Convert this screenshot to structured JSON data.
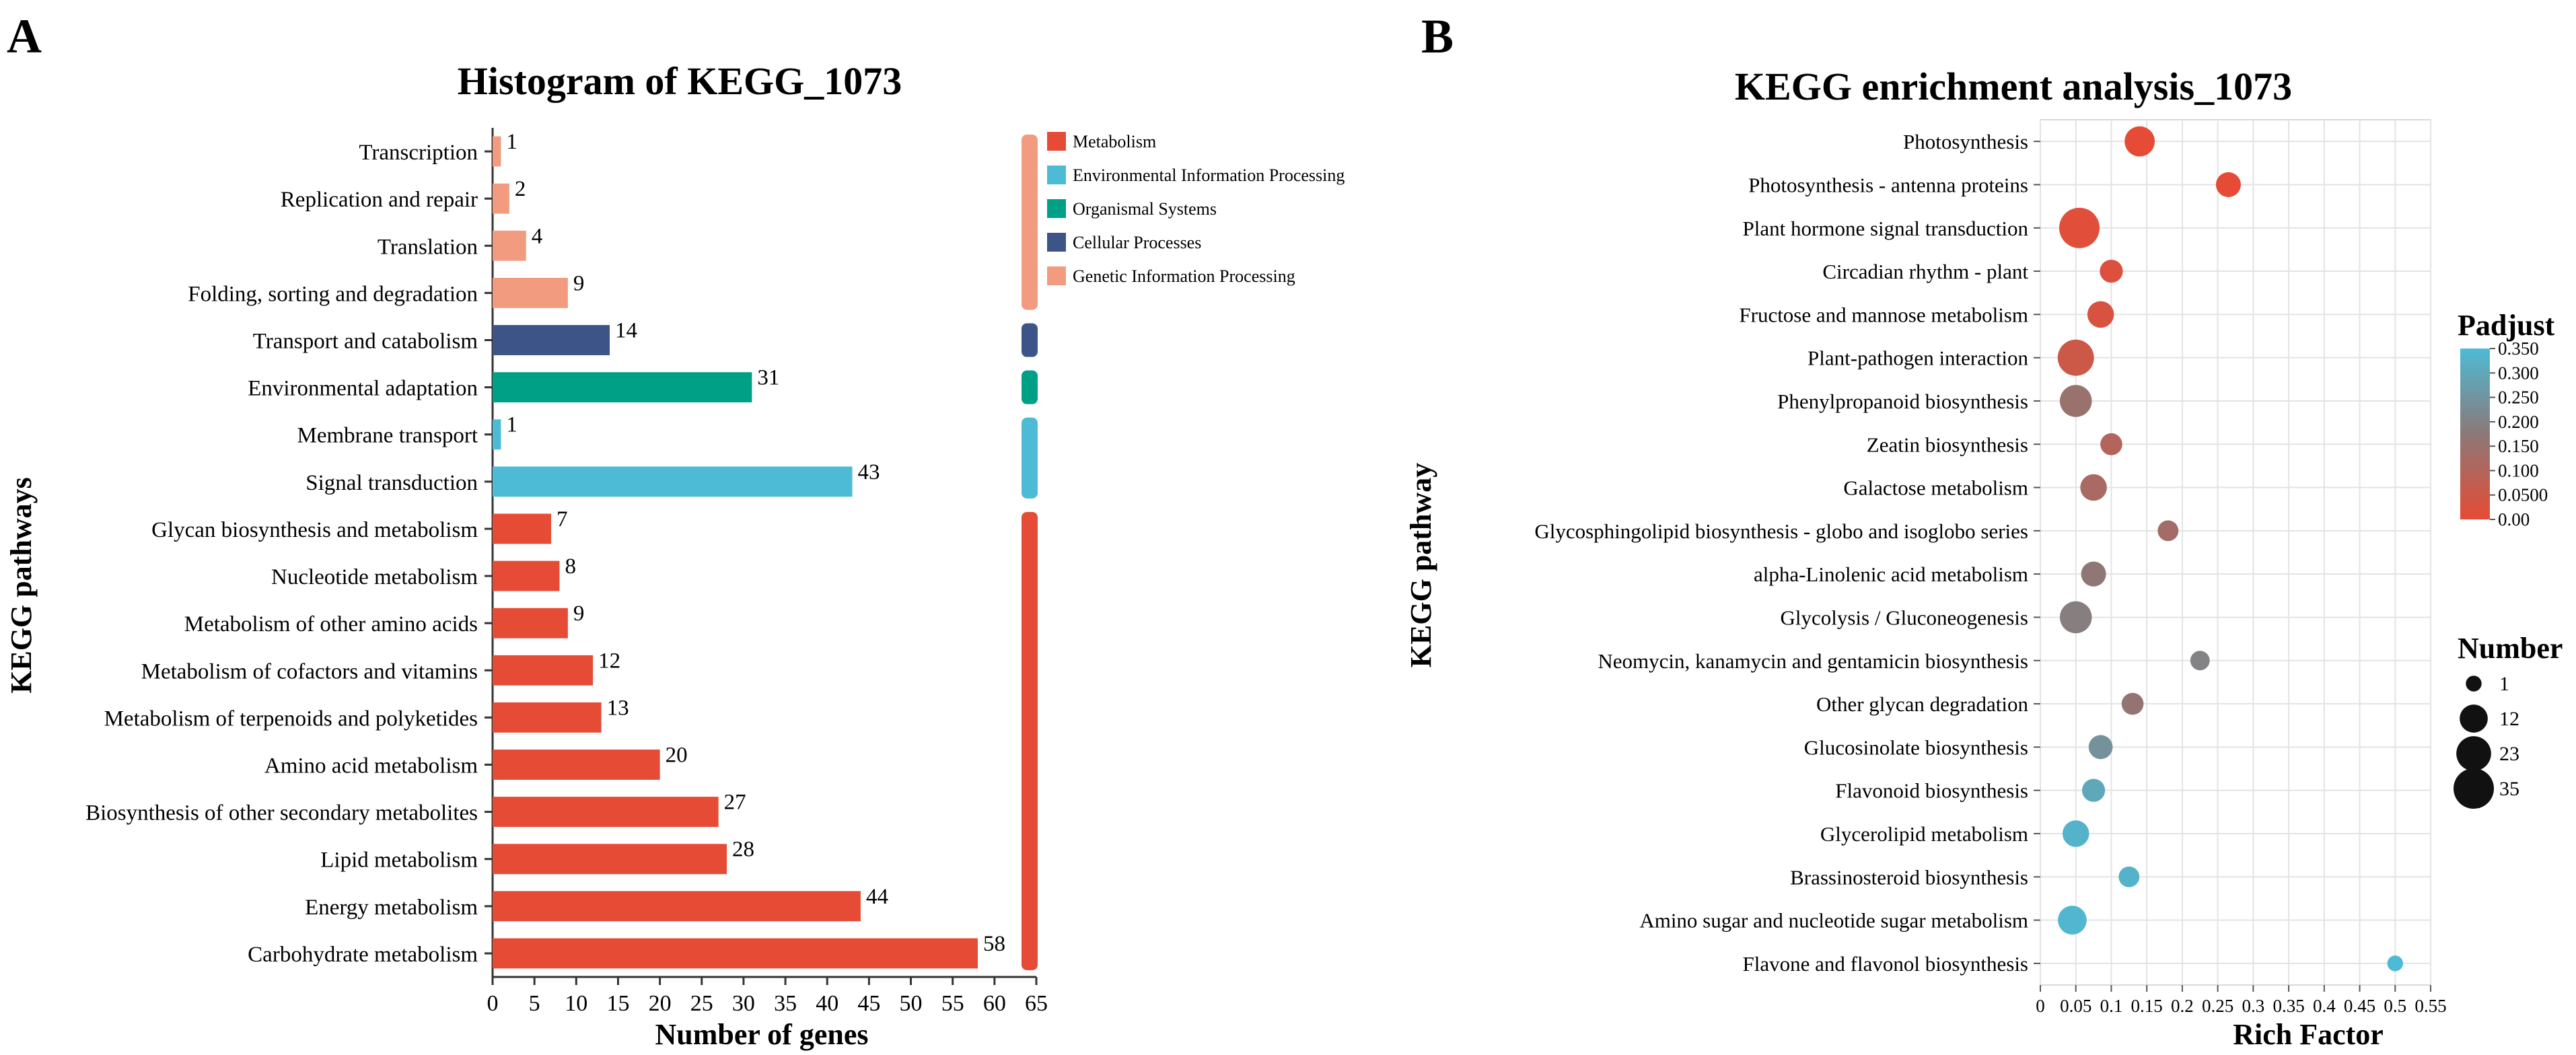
{
  "panels": {
    "A": {
      "letter": "A"
    },
    "B": {
      "letter": "B"
    }
  },
  "chart_data": [
    {
      "type": "bar",
      "orientation": "horizontal",
      "title": "Histogram of KEGG_1073",
      "xlabel": "Number of genes",
      "ylabel": "KEGG pathways",
      "xlim": [
        0,
        65
      ],
      "xticks": [
        0,
        5,
        10,
        15,
        20,
        25,
        30,
        35,
        40,
        45,
        50,
        55,
        60,
        65
      ],
      "categories": [
        "Transcription",
        "Replication and repair",
        "Translation",
        "Folding, sorting and degradation",
        "Transport and catabolism",
        "Environmental adaptation",
        "Membrane transport",
        "Signal transduction",
        "Glycan biosynthesis and metabolism",
        "Nucleotide metabolism",
        "Metabolism of other amino acids",
        "Metabolism of cofactors and vitamins",
        "Metabolism of terpenoids and polyketides",
        "Amino acid metabolism",
        "Biosynthesis of other secondary metabolites",
        "Lipid metabolism",
        "Energy metabolism",
        "Carbohydrate metabolism"
      ],
      "values": [
        1,
        2,
        4,
        9,
        14,
        31,
        1,
        43,
        7,
        8,
        9,
        12,
        13,
        20,
        27,
        28,
        44,
        58
      ],
      "groups": [
        4,
        4,
        4,
        4,
        3,
        2,
        1,
        1,
        0,
        0,
        0,
        0,
        0,
        0,
        0,
        0,
        0,
        0
      ],
      "legend": [
        {
          "name": "Metabolism",
          "color": "#e64b35"
        },
        {
          "name": "Environmental Information Processing",
          "color": "#4dbbd5"
        },
        {
          "name": "Organismal Systems",
          "color": "#00a087"
        },
        {
          "name": "Cellular Processes",
          "color": "#3c5488"
        },
        {
          "name": "Genetic Information Processing",
          "color": "#f39b7f"
        }
      ],
      "legend_position": "top-right"
    },
    {
      "type": "scatter",
      "title": "KEGG enrichment analysis_1073",
      "xlabel": "Rich Factor",
      "ylabel": "KEGG pathway",
      "xlim": [
        0,
        0.55
      ],
      "xticks": [
        "0",
        "0.05",
        "0.1",
        "0.15",
        "0.2",
        "0.25",
        "0.3",
        "0.35",
        "0.4",
        "0.45",
        "0.5",
        "0.55"
      ],
      "grid": true,
      "categories": [
        "Photosynthesis",
        "Photosynthesis - antenna proteins",
        "Plant hormone signal transduction",
        "Circadian rhythm - plant",
        "Fructose and mannose metabolism",
        "Plant-pathogen interaction",
        "Phenylpropanoid biosynthesis",
        "Zeatin biosynthesis",
        "Galactose metabolism",
        "Glycosphingolipid biosynthesis - globo and isoglobo series",
        "alpha-Linolenic acid metabolism",
        "Glycolysis / Gluconeogenesis",
        "Neomycin, kanamycin and gentamicin biosynthesis",
        "Other glycan degradation",
        "Glucosinolate biosynthesis",
        "Flavonoid biosynthesis",
        "Glycerolipid metabolism",
        "Brassinosteroid biosynthesis",
        "Amino sugar and nucleotide sugar metabolism",
        "Flavone and flavonol biosynthesis"
      ],
      "rich_factor": [
        0.14,
        0.265,
        0.055,
        0.1,
        0.085,
        0.05,
        0.05,
        0.1,
        0.075,
        0.18,
        0.075,
        0.05,
        0.225,
        0.13,
        0.085,
        0.075,
        0.05,
        0.125,
        0.045,
        0.5
      ],
      "number": [
        15,
        8,
        35,
        6,
        10,
        26,
        18,
        5,
        10,
        4,
        8,
        18,
        3,
        5,
        7,
        6,
        10,
        4,
        13,
        1
      ],
      "padj": [
        0.0,
        0.0,
        0.01,
        0.02,
        0.03,
        0.05,
        0.15,
        0.1,
        0.12,
        0.13,
        0.17,
        0.19,
        0.2,
        0.16,
        0.24,
        0.3,
        0.33,
        0.33,
        0.34,
        0.35
      ],
      "legend_padj": {
        "title": "Padjust",
        "ticks": [
          "0.350",
          "0.300",
          "0.250",
          "0.200",
          "0.150",
          "0.100",
          "0.0500",
          "0.00"
        ],
        "low_color": "#e64b35",
        "high_color": "#4dbbd5"
      },
      "legend_number": {
        "title": "Number",
        "labels": [
          "1",
          "12",
          "23",
          "35"
        ],
        "values": [
          1,
          12,
          23,
          35
        ]
      }
    }
  ]
}
